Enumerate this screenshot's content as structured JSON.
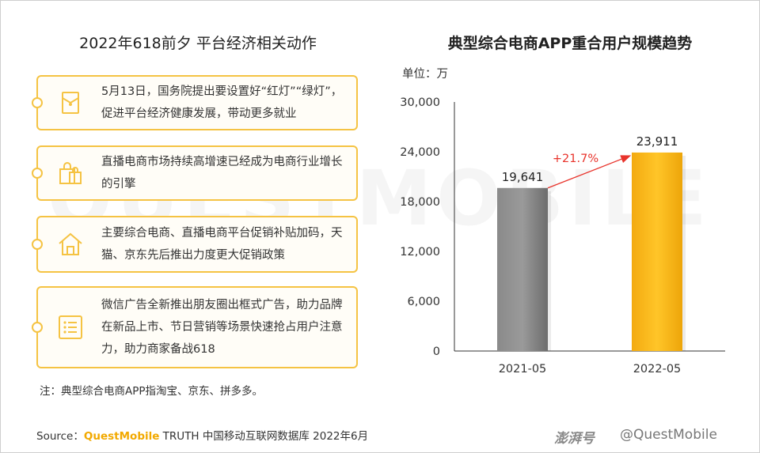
{
  "left_panel": {
    "title": "2022年618前夕 平台经济相关动作",
    "cards": [
      {
        "icon": "document-icon",
        "text": "5月13日，国务院提出要设置好“红灯”“绿灯”，促进平台经济健康发展，带动更多就业"
      },
      {
        "icon": "shopping-bag-icon",
        "text": "直播电商市场持续高增速已经成为电商行业增长的引擎"
      },
      {
        "icon": "house-icon",
        "text": "主要综合电商、直播电商平台促销补贴加码，天猫、京东先后推出力度更大促销政策"
      },
      {
        "icon": "list-icon",
        "text": "微信广告全新推出朋友圈出框式广告，助力品牌在新品上市、节日营销等场景快速抢占用户注意力，助力商家备战618"
      }
    ],
    "note": "注：典型综合电商APP指淘宝、京东、拼多多。"
  },
  "right_panel": {
    "title": "典型综合电商APP重合用户规模趋势",
    "unit_label": "单位：万"
  },
  "chart_data": {
    "type": "bar",
    "title": "典型综合电商APP重合用户规模趋势",
    "categories": [
      "2021-05",
      "2022-05"
    ],
    "series": [
      {
        "values": [
          19641,
          23911
        ]
      }
    ],
    "value_labels": [
      "19,641",
      "23,911"
    ],
    "yticks": [
      0,
      6000,
      12000,
      18000,
      24000,
      30000
    ],
    "ytick_labels": [
      "0",
      "6,000",
      "12,000",
      "18,000",
      "24,000",
      "30,000"
    ],
    "ylim": [
      0,
      30000
    ],
    "growth_annotation": "+21.7%",
    "bar_colors": [
      "#7a7a7a",
      "#f7b516"
    ],
    "annotation_color": "#e8332b",
    "grid": false
  },
  "footer": {
    "source_prefix": "Source：",
    "source_brand": "QuestMobile",
    "source_rest": " TRUTH 中国移动互联网数据库 2022年6月",
    "logo_text": "澎湃号",
    "handle": "@QuestMobile"
  },
  "watermark": "QUESTMOBILE",
  "colors": {
    "accent": "#f5c343",
    "brand": "#f2a900"
  }
}
